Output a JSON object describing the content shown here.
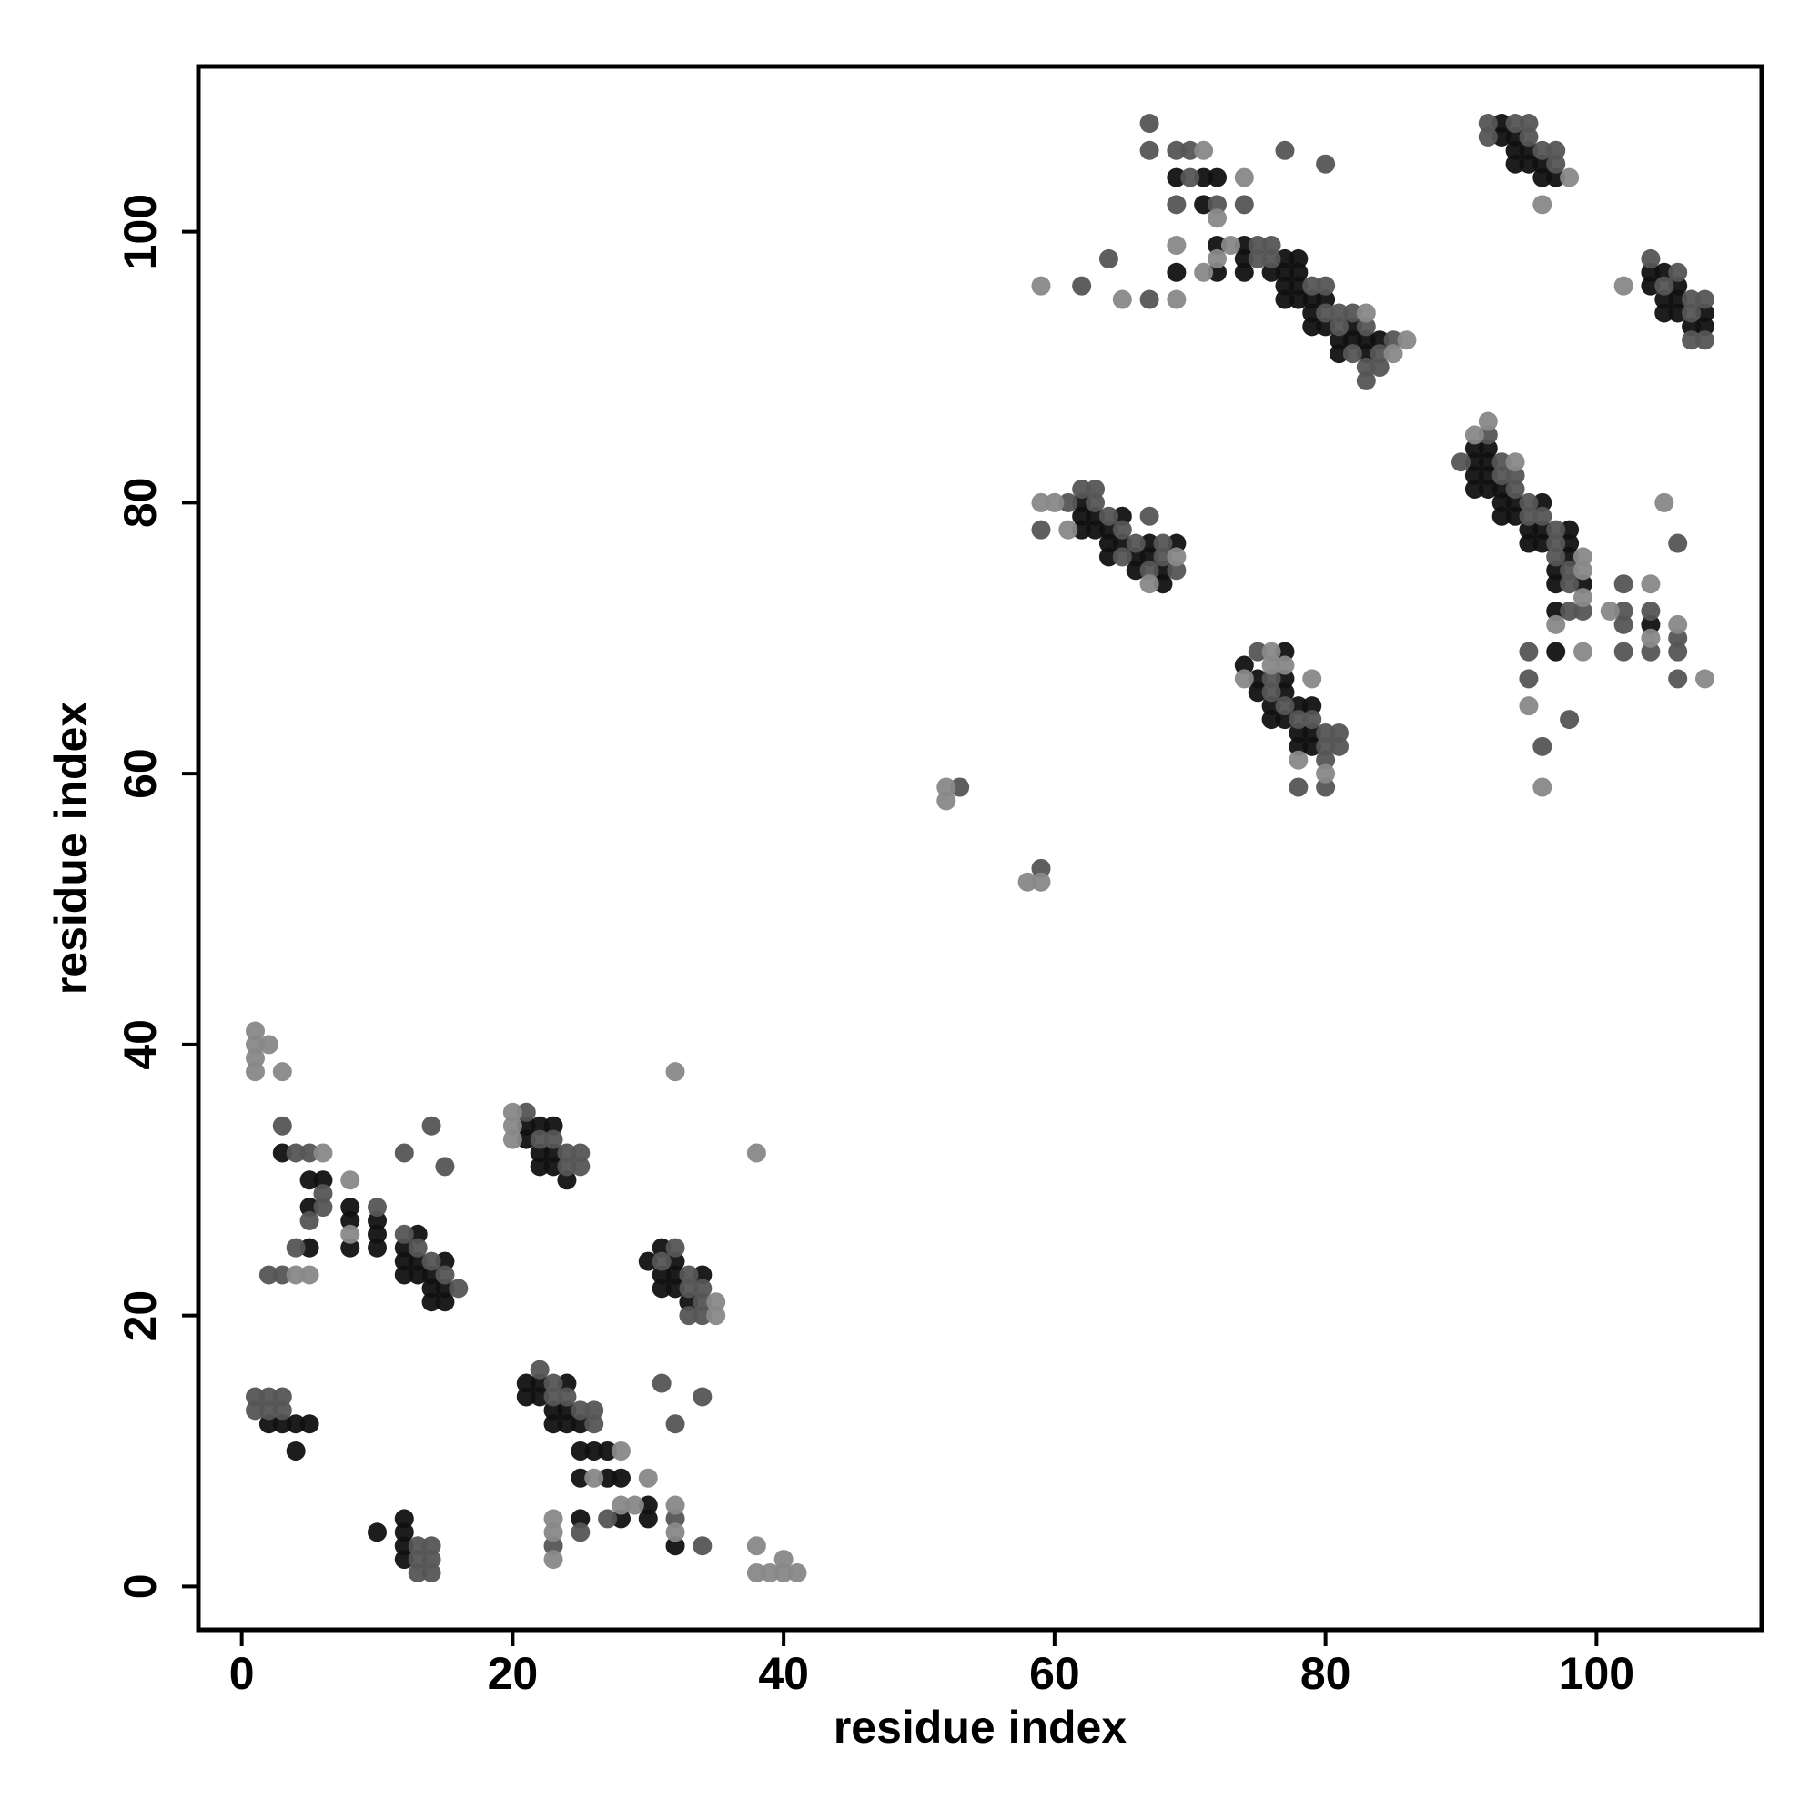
{
  "chart_data": {
    "type": "scatter",
    "x_label": "residue index",
    "y_label": "residue index",
    "xlim": [
      -3.2,
      112.2
    ],
    "ylim": [
      -3.2,
      112.2
    ],
    "xticks": [
      0,
      20,
      40,
      60,
      80,
      100
    ],
    "yticks": [
      0,
      20,
      40,
      60,
      80,
      100
    ],
    "series": [
      {
        "color": "#111111",
        "x": [
          3,
          5,
          6,
          5,
          5,
          8,
          8,
          8,
          10,
          10,
          10,
          13,
          12,
          12,
          13,
          15,
          12,
          13,
          14,
          14,
          15,
          14,
          15,
          2,
          3,
          4,
          5,
          4,
          10,
          12,
          12,
          12,
          12,
          21,
          22,
          23,
          21,
          22,
          23,
          22,
          23,
          24,
          30,
          31,
          32,
          31,
          32,
          34,
          31,
          32,
          33,
          21,
          22,
          24,
          21,
          22,
          23,
          24,
          23,
          24,
          25,
          25,
          26,
          27,
          25,
          27,
          28,
          25,
          28,
          30,
          30,
          32,
          62,
          62,
          63,
          65,
          62,
          63,
          64,
          64,
          65,
          67,
          69,
          64,
          66,
          67,
          66,
          68,
          68,
          74,
          77,
          75,
          77,
          75,
          77,
          76,
          78,
          79,
          76,
          77,
          78,
          79,
          78,
          79,
          91,
          92,
          91,
          92,
          91,
          92,
          91,
          92,
          93,
          93,
          94,
          96,
          93,
          94,
          95,
          96,
          98,
          95,
          96,
          98,
          98,
          97,
          97,
          99,
          97,
          97,
          104,
          93,
          93,
          94,
          94,
          95,
          94,
          95,
          96,
          96,
          97,
          104,
          105,
          104,
          106,
          105,
          106,
          105,
          106,
          108,
          107,
          108,
          69,
          71,
          72,
          71,
          72,
          74,
          74,
          77,
          78,
          69,
          72,
          74,
          76,
          77,
          78,
          77,
          78,
          77,
          78,
          79,
          80,
          79,
          79,
          80,
          82,
          81,
          82,
          83,
          84,
          81,
          83
        ],
        "values": [
          32,
          30,
          30,
          28,
          25,
          28,
          27,
          25,
          27,
          26,
          25,
          26,
          25,
          24,
          24,
          24,
          23,
          23,
          23,
          22,
          22,
          21,
          21,
          12,
          12,
          12,
          12,
          10,
          4,
          5,
          4,
          3,
          2,
          34,
          34,
          34,
          33,
          32,
          32,
          31,
          31,
          30,
          24,
          25,
          24,
          23,
          23,
          23,
          22,
          22,
          21,
          15,
          15,
          15,
          14,
          14,
          13,
          13,
          12,
          12,
          12,
          10,
          10,
          10,
          8,
          8,
          8,
          5,
          5,
          6,
          5,
          3,
          80,
          79,
          79,
          79,
          78,
          78,
          78,
          77,
          77,
          77,
          77,
          76,
          76,
          76,
          75,
          75,
          74,
          68,
          69,
          67,
          67,
          66,
          66,
          65,
          65,
          65,
          64,
          64,
          63,
          63,
          62,
          62,
          84,
          84,
          83,
          83,
          82,
          82,
          81,
          81,
          81,
          80,
          80,
          80,
          79,
          79,
          78,
          78,
          78,
          77,
          77,
          77,
          76,
          75,
          74,
          74,
          72,
          69,
          71,
          108,
          107,
          107,
          106,
          106,
          105,
          105,
          105,
          104,
          104,
          97,
          97,
          96,
          96,
          95,
          95,
          94,
          94,
          94,
          93,
          93,
          104,
          104,
          104,
          102,
          99,
          99,
          98,
          98,
          98,
          97,
          97,
          97,
          97,
          97,
          97,
          96,
          96,
          95,
          95,
          95,
          95,
          94,
          93,
          93,
          93,
          92,
          92,
          92,
          92,
          91,
          91
        ]
      },
      {
        "color": "#555555",
        "x": [
          3,
          4,
          5,
          6,
          6,
          5,
          4,
          2,
          3,
          10,
          12,
          14,
          15,
          12,
          13,
          14,
          15,
          16,
          1,
          2,
          3,
          1,
          2,
          3,
          13,
          14,
          13,
          14,
          13,
          14,
          21,
          22,
          23,
          24,
          25,
          24,
          25,
          32,
          31,
          33,
          33,
          34,
          34,
          33,
          34,
          22,
          23,
          23,
          24,
          25,
          26,
          26,
          31,
          32,
          34,
          23,
          25,
          27,
          32,
          34,
          53,
          59,
          61,
          62,
          63,
          63,
          59,
          64,
          65,
          66,
          68,
          65,
          68,
          67,
          69,
          67,
          75,
          76,
          76,
          77,
          78,
          79,
          80,
          81,
          80,
          81,
          80,
          78,
          80,
          90,
          92,
          93,
          93,
          94,
          94,
          95,
          95,
          96,
          97,
          97,
          97,
          98,
          98,
          98,
          99,
          95,
          95,
          96,
          98,
          102,
          102,
          102,
          102,
          104,
          104,
          106,
          106,
          106,
          106,
          92,
          94,
          95,
          92,
          95,
          96,
          97,
          97,
          104,
          106,
          105,
          107,
          108,
          107,
          107,
          108,
          67,
          67,
          69,
          70,
          70,
          69,
          72,
          74,
          77,
          80,
          75,
          76,
          75,
          76,
          79,
          80,
          80,
          81,
          82,
          81,
          83,
          85,
          82,
          84,
          83,
          84,
          83,
          62,
          64,
          67
        ],
        "values": [
          34,
          32,
          32,
          29,
          28,
          27,
          25,
          23,
          23,
          28,
          32,
          34,
          31,
          26,
          25,
          24,
          23,
          22,
          14,
          14,
          14,
          13,
          13,
          13,
          3,
          3,
          2,
          2,
          1,
          1,
          35,
          33,
          33,
          32,
          32,
          31,
          31,
          25,
          24,
          23,
          22,
          22,
          21,
          20,
          20,
          16,
          15,
          14,
          14,
          13,
          13,
          12,
          15,
          12,
          14,
          3,
          4,
          5,
          5,
          3,
          59,
          53,
          80,
          81,
          81,
          80,
          78,
          79,
          78,
          77,
          77,
          76,
          76,
          75,
          75,
          79,
          69,
          67,
          66,
          65,
          64,
          64,
          63,
          63,
          62,
          62,
          61,
          59,
          59,
          83,
          85,
          83,
          82,
          82,
          81,
          80,
          79,
          79,
          78,
          77,
          76,
          75,
          74,
          72,
          72,
          69,
          67,
          62,
          64,
          74,
          72,
          71,
          69,
          72,
          69,
          70,
          69,
          67,
          77,
          108,
          108,
          108,
          107,
          107,
          106,
          106,
          105,
          98,
          97,
          96,
          95,
          95,
          94,
          92,
          92,
          108,
          106,
          106,
          106,
          104,
          102,
          102,
          102,
          106,
          105,
          99,
          99,
          98,
          98,
          96,
          96,
          94,
          94,
          94,
          93,
          93,
          92,
          91,
          91,
          90,
          90,
          89,
          96,
          98,
          95
        ]
      },
      {
        "color": "#888888",
        "x": [
          1,
          1,
          1,
          1,
          2,
          3,
          6,
          4,
          5,
          8,
          8,
          20,
          20,
          20,
          32,
          38,
          35,
          35,
          28,
          26,
          30,
          23,
          23,
          23,
          28,
          29,
          32,
          32,
          38,
          38,
          39,
          40,
          40,
          41,
          52,
          52,
          58,
          59,
          59,
          60,
          61,
          69,
          67,
          76,
          74,
          78,
          80,
          79,
          76,
          77,
          91,
          92,
          94,
          99,
          99,
          99,
          97,
          99,
          95,
          96,
          101,
          104,
          104,
          106,
          105,
          108,
          98,
          96,
          102,
          71,
          74,
          72,
          69,
          73,
          72,
          71,
          83,
          86,
          85,
          59,
          65,
          69
        ],
        "values": [
          41,
          40,
          39,
          38,
          40,
          38,
          32,
          23,
          23,
          30,
          26,
          35,
          34,
          33,
          38,
          32,
          21,
          20,
          10,
          8,
          8,
          5,
          4,
          2,
          6,
          6,
          6,
          4,
          3,
          1,
          1,
          2,
          1,
          1,
          59,
          58,
          52,
          52,
          80,
          80,
          78,
          76,
          74,
          69,
          67,
          61,
          60,
          67,
          68,
          68,
          85,
          86,
          83,
          76,
          75,
          73,
          71,
          69,
          65,
          59,
          72,
          74,
          70,
          71,
          80,
          67,
          104,
          102,
          96,
          106,
          104,
          101,
          99,
          99,
          98,
          97,
          94,
          92,
          91,
          96,
          95,
          95
        ]
      }
    ]
  }
}
